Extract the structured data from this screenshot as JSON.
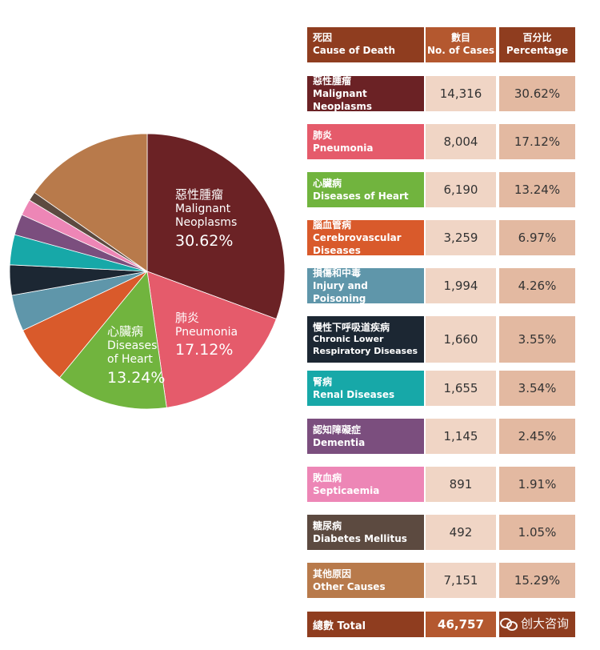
{
  "chart_data": {
    "type": "pie",
    "slices": [
      {
        "zh": "惡性腫瘤",
        "en": "Malignant Neoplasms",
        "cases": "14,316",
        "pct": "30.62%",
        "value": 30.62,
        "color": "#6b2225"
      },
      {
        "zh": "肺炎",
        "en": "Pneumonia",
        "cases": "8,004",
        "pct": "17.12%",
        "value": 17.12,
        "color": "#e55b6b"
      },
      {
        "zh": "心臟病",
        "en": "Diseases of Heart",
        "cases": "6,190",
        "pct": "13.24%",
        "value": 13.24,
        "color": "#71b43e"
      },
      {
        "zh": "腦血管病",
        "en": "Cerebrovascular Diseases",
        "cases": "3,259",
        "pct": "6.97%",
        "value": 6.97,
        "color": "#d95a2b"
      },
      {
        "zh": "損傷和中毒",
        "en": "Injury and Poisoning",
        "cases": "1,994",
        "pct": "4.26%",
        "value": 4.26,
        "color": "#5f96aa"
      },
      {
        "zh": "慢性下呼吸道疾病",
        "en": "Chronic Lower Respiratory Diseases",
        "cases": "1,660",
        "pct": "3.55%",
        "value": 3.55,
        "color": "#1c2733"
      },
      {
        "zh": "腎病",
        "en": "Renal Diseases",
        "cases": "1,655",
        "pct": "3.54%",
        "value": 3.54,
        "color": "#17a8a8"
      },
      {
        "zh": "認知障礙症",
        "en": "Dementia",
        "cases": "1,145",
        "pct": "2.45%",
        "value": 2.45,
        "color": "#7b4e7e"
      },
      {
        "zh": "敗血病",
        "en": "Septicaemia",
        "cases": "891",
        "pct": "1.91%",
        "value": 1.91,
        "color": "#ed86b6"
      },
      {
        "zh": "糖尿病",
        "en": "Diabetes Mellitus",
        "cases": "492",
        "pct": "1.05%",
        "value": 1.05,
        "color": "#5c4a40"
      },
      {
        "zh": "其他原因",
        "en": "Other Causes",
        "cases": "7,151",
        "pct": "15.29%",
        "value": 15.29,
        "color": "#b87a4b"
      }
    ]
  },
  "pie_labels": {
    "malignant": {
      "zh": "惡性腫瘤",
      "en1": "Malignant",
      "en2": "Neoplasms",
      "pct": "30.62%"
    },
    "pneumonia": {
      "zh": "肺炎",
      "en1": "Pneumonia",
      "pct": "17.12%"
    },
    "heart": {
      "zh": "心臟病",
      "en1": "Diseases",
      "en2": "of Heart",
      "pct": "13.24%"
    }
  },
  "table": {
    "header": {
      "cause_zh": "死因",
      "cause_en": "Cause of Death",
      "num_zh": "數目",
      "num_en": "No. of Cases",
      "pct_zh": "百分比",
      "pct_en": "Percentage"
    },
    "total_label": "總數 Total",
    "total_value": "46,757"
  },
  "watermark": "创大咨询"
}
